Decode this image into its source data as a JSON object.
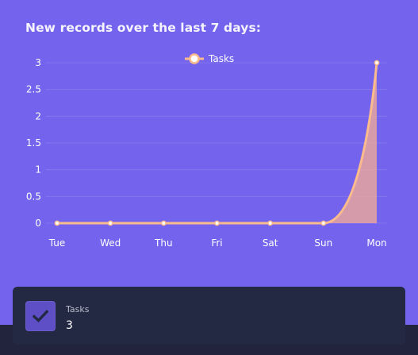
{
  "panel": {
    "title": "New records over the last 7 days:"
  },
  "chart_data": {
    "type": "area",
    "categories": [
      "Tue",
      "Wed",
      "Thu",
      "Fri",
      "Sat",
      "Sun",
      "Mon"
    ],
    "series": [
      {
        "name": "Tasks",
        "values": [
          0,
          0,
          0,
          0,
          0,
          0,
          3
        ]
      }
    ],
    "y_ticks": [
      "0",
      "0.5",
      "1",
      "1.5",
      "2",
      "2.5",
      "3"
    ],
    "ylim": [
      0,
      3
    ],
    "grid": true,
    "legend": "top-center",
    "colors": {
      "line": "#fbbb8c",
      "fill": "#e8a5a0",
      "grid": "#8577ef",
      "point_fill": "#ffffff"
    }
  },
  "stat_card": {
    "icon": "check-icon",
    "label": "Tasks",
    "value": "3"
  },
  "colors": {
    "background": "#7463ec",
    "card": "#232942",
    "bottom_bar": "#21243c",
    "icon_box": "#5e4fc7"
  }
}
